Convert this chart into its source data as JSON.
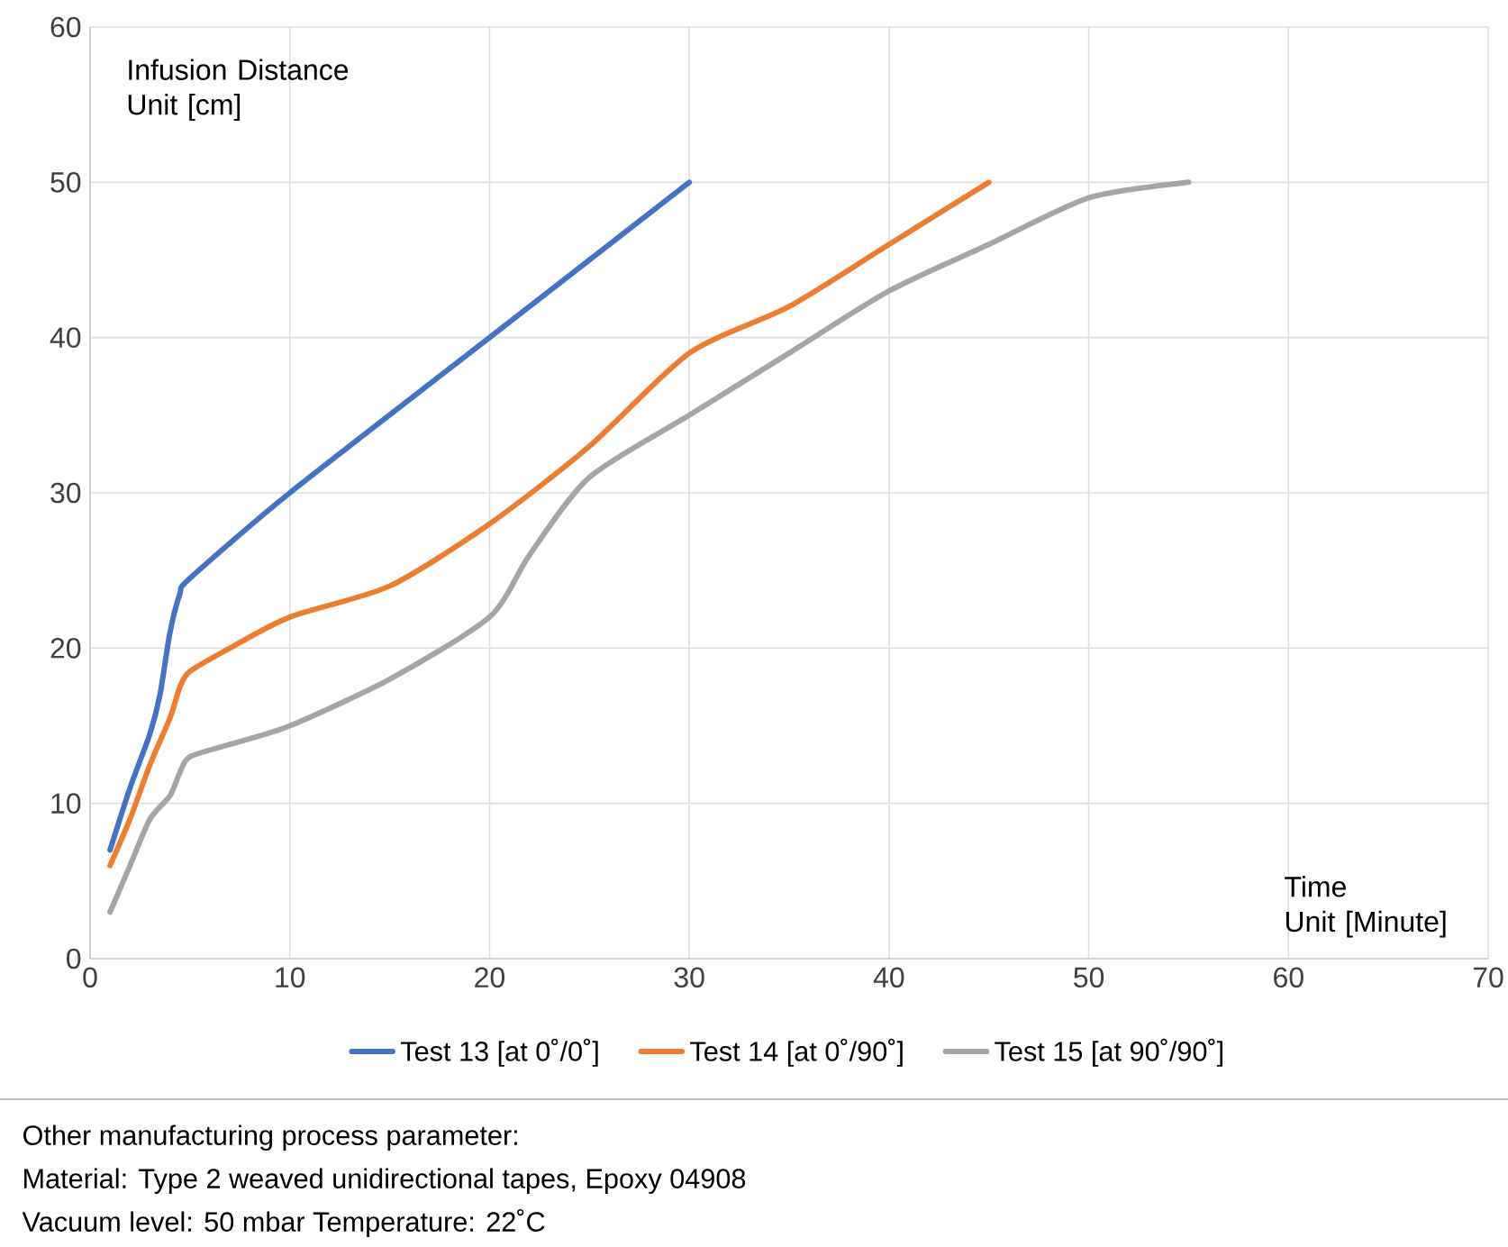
{
  "chart_data": {
    "type": "line",
    "xlabel": "Time\nUnit [Minute]",
    "ylabel": "Infusion Distance\nUnit [cm]",
    "xlim": [
      0,
      70
    ],
    "ylim": [
      0,
      60
    ],
    "xticks": [
      0,
      10,
      20,
      30,
      40,
      50,
      60,
      70
    ],
    "yticks": [
      0,
      10,
      20,
      30,
      40,
      50,
      60
    ],
    "grid": true,
    "legend": "bottom",
    "series": [
      {
        "name": "Test 13 [at 0˚/0˚]",
        "color": "#4472c4",
        "x": [
          1,
          2,
          3,
          3.5,
          4,
          4.5,
          5,
          10,
          20,
          30
        ],
        "values": [
          7,
          11,
          14.5,
          17,
          21,
          23.5,
          24.5,
          30,
          40,
          50
        ]
      },
      {
        "name": "Test 14 [at 0˚/90˚]",
        "color": "#ed7d31",
        "x": [
          1,
          2,
          3,
          4,
          4.5,
          5,
          7,
          10,
          15,
          20,
          25,
          30,
          35,
          40,
          45
        ],
        "values": [
          6,
          9,
          12.5,
          15.5,
          17.5,
          18.5,
          20,
          22,
          24,
          28,
          33,
          39,
          42,
          46,
          50
        ]
      },
      {
        "name": "Test 15 [at 90˚/90˚]",
        "color": "#a5a5a5",
        "x": [
          1,
          2,
          3,
          4,
          4.5,
          5,
          7,
          10,
          15,
          20,
          22,
          25,
          30,
          35,
          40,
          45,
          50,
          55
        ],
        "values": [
          3,
          6,
          9,
          10.5,
          12,
          13,
          13.8,
          15,
          18,
          22,
          26,
          31,
          35,
          39,
          43,
          46,
          49,
          50
        ]
      }
    ],
    "annotations": [
      "Other manufacturing process parameter:",
      "Material: Type 2 weaved unidirectional tapes, Epoxy 04908",
      "Vacuum level: 50 mbar Temperature: 22˚C"
    ]
  }
}
